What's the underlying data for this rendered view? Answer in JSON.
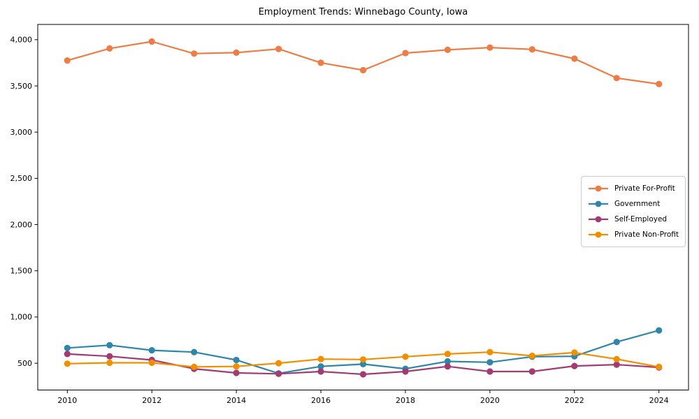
{
  "title": "Employment Trends: Winnebago County, Iowa",
  "colors": {
    "background": "#ffffff",
    "axis": "#000000",
    "legend_border": "#cccccc"
  },
  "chart_data": {
    "type": "line",
    "title": "Employment Trends: Winnebago County, Iowa",
    "xlabel": "",
    "ylabel": "",
    "grid": false,
    "legend_position": "center right",
    "marker": "o",
    "x": [
      2010,
      2011,
      2012,
      2013,
      2014,
      2015,
      2016,
      2017,
      2018,
      2019,
      2020,
      2021,
      2022,
      2023,
      2024
    ],
    "xticks": [
      2010,
      2012,
      2014,
      2016,
      2018,
      2020,
      2022,
      2024
    ],
    "yticks": [
      500,
      1000,
      1500,
      2000,
      2500,
      3000,
      3500,
      4000
    ],
    "xlim": [
      2009.3,
      2024.7
    ],
    "ylim": [
      210,
      4165
    ],
    "series": [
      {
        "name": "Private For-Profit",
        "color": "#ED7D45",
        "values": [
          3775,
          3905,
          3980,
          3850,
          3860,
          3900,
          3750,
          3670,
          3855,
          3890,
          3915,
          3895,
          3795,
          3585,
          3520
        ]
      },
      {
        "name": "Government",
        "color": "#2E86AB",
        "values": [
          665,
          695,
          640,
          620,
          535,
          390,
          465,
          490,
          440,
          520,
          510,
          570,
          575,
          730,
          855
        ]
      },
      {
        "name": "Self-Employed",
        "color": "#A23B72",
        "values": [
          600,
          575,
          535,
          440,
          395,
          385,
          410,
          380,
          410,
          465,
          410,
          410,
          470,
          485,
          455
        ]
      },
      {
        "name": "Private Non-Profit",
        "color": "#F18F01",
        "values": [
          495,
          505,
          505,
          460,
          465,
          500,
          545,
          540,
          570,
          600,
          620,
          580,
          615,
          545,
          460
        ]
      }
    ]
  }
}
